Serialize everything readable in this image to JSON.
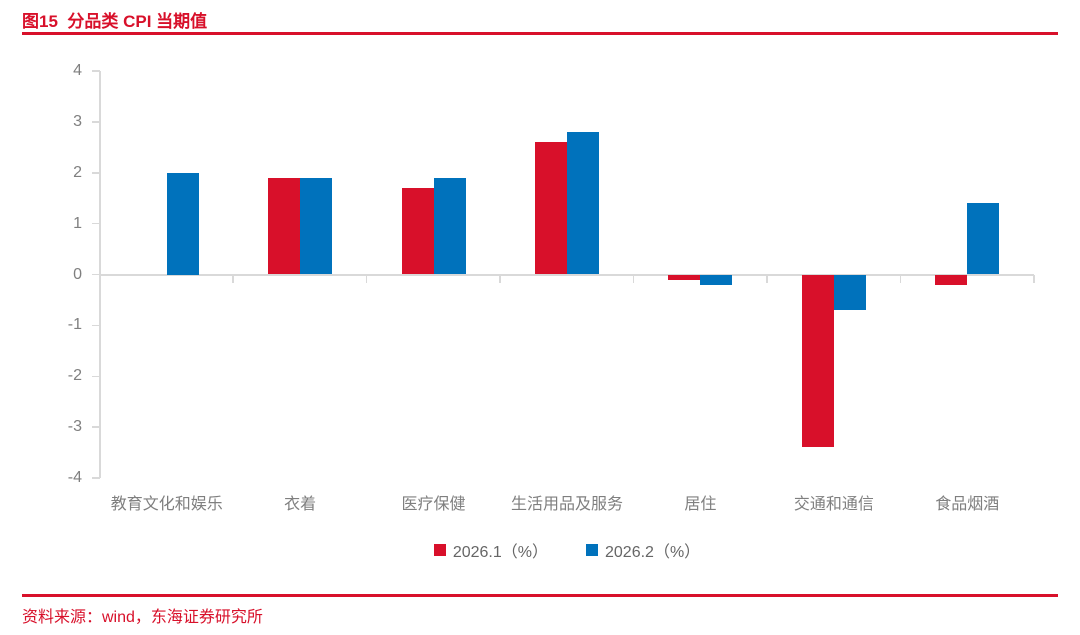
{
  "header": {
    "title": "图15  分品类 CPI 当期值"
  },
  "chart_data": {
    "type": "bar",
    "title": "图15 分品类 CPI 当期值",
    "categories": [
      "教育文化和娱乐",
      "衣着",
      "医疗保健",
      "生活用品及服务",
      "居住",
      "交通和通信",
      "食品烟酒"
    ],
    "series": [
      {
        "name": "2026.1（%）",
        "color": "#d8102a",
        "values": [
          0,
          1.9,
          1.7,
          2.6,
          -0.1,
          -3.4,
          -0.2
        ]
      },
      {
        "name": "2026.2（%）",
        "color": "#0072bc",
        "values": [
          2.0,
          1.9,
          1.9,
          2.8,
          -0.2,
          -0.7,
          1.4
        ]
      }
    ],
    "ylim": [
      -4,
      4
    ],
    "y_ticks": [
      4,
      3,
      2,
      1,
      0,
      -1,
      -2,
      -3,
      -4
    ],
    "xlabel": "",
    "ylabel": "",
    "grid": false,
    "legend_position": "bottom"
  },
  "footer": {
    "source": "资料来源：wind，东海证券研究所"
  },
  "colors": {
    "accent_red": "#d8102a",
    "series_blue": "#0072bc",
    "axis_gray": "#d9d9d9",
    "text_gray": "#7f7f7f",
    "legend_text": "#666666"
  }
}
